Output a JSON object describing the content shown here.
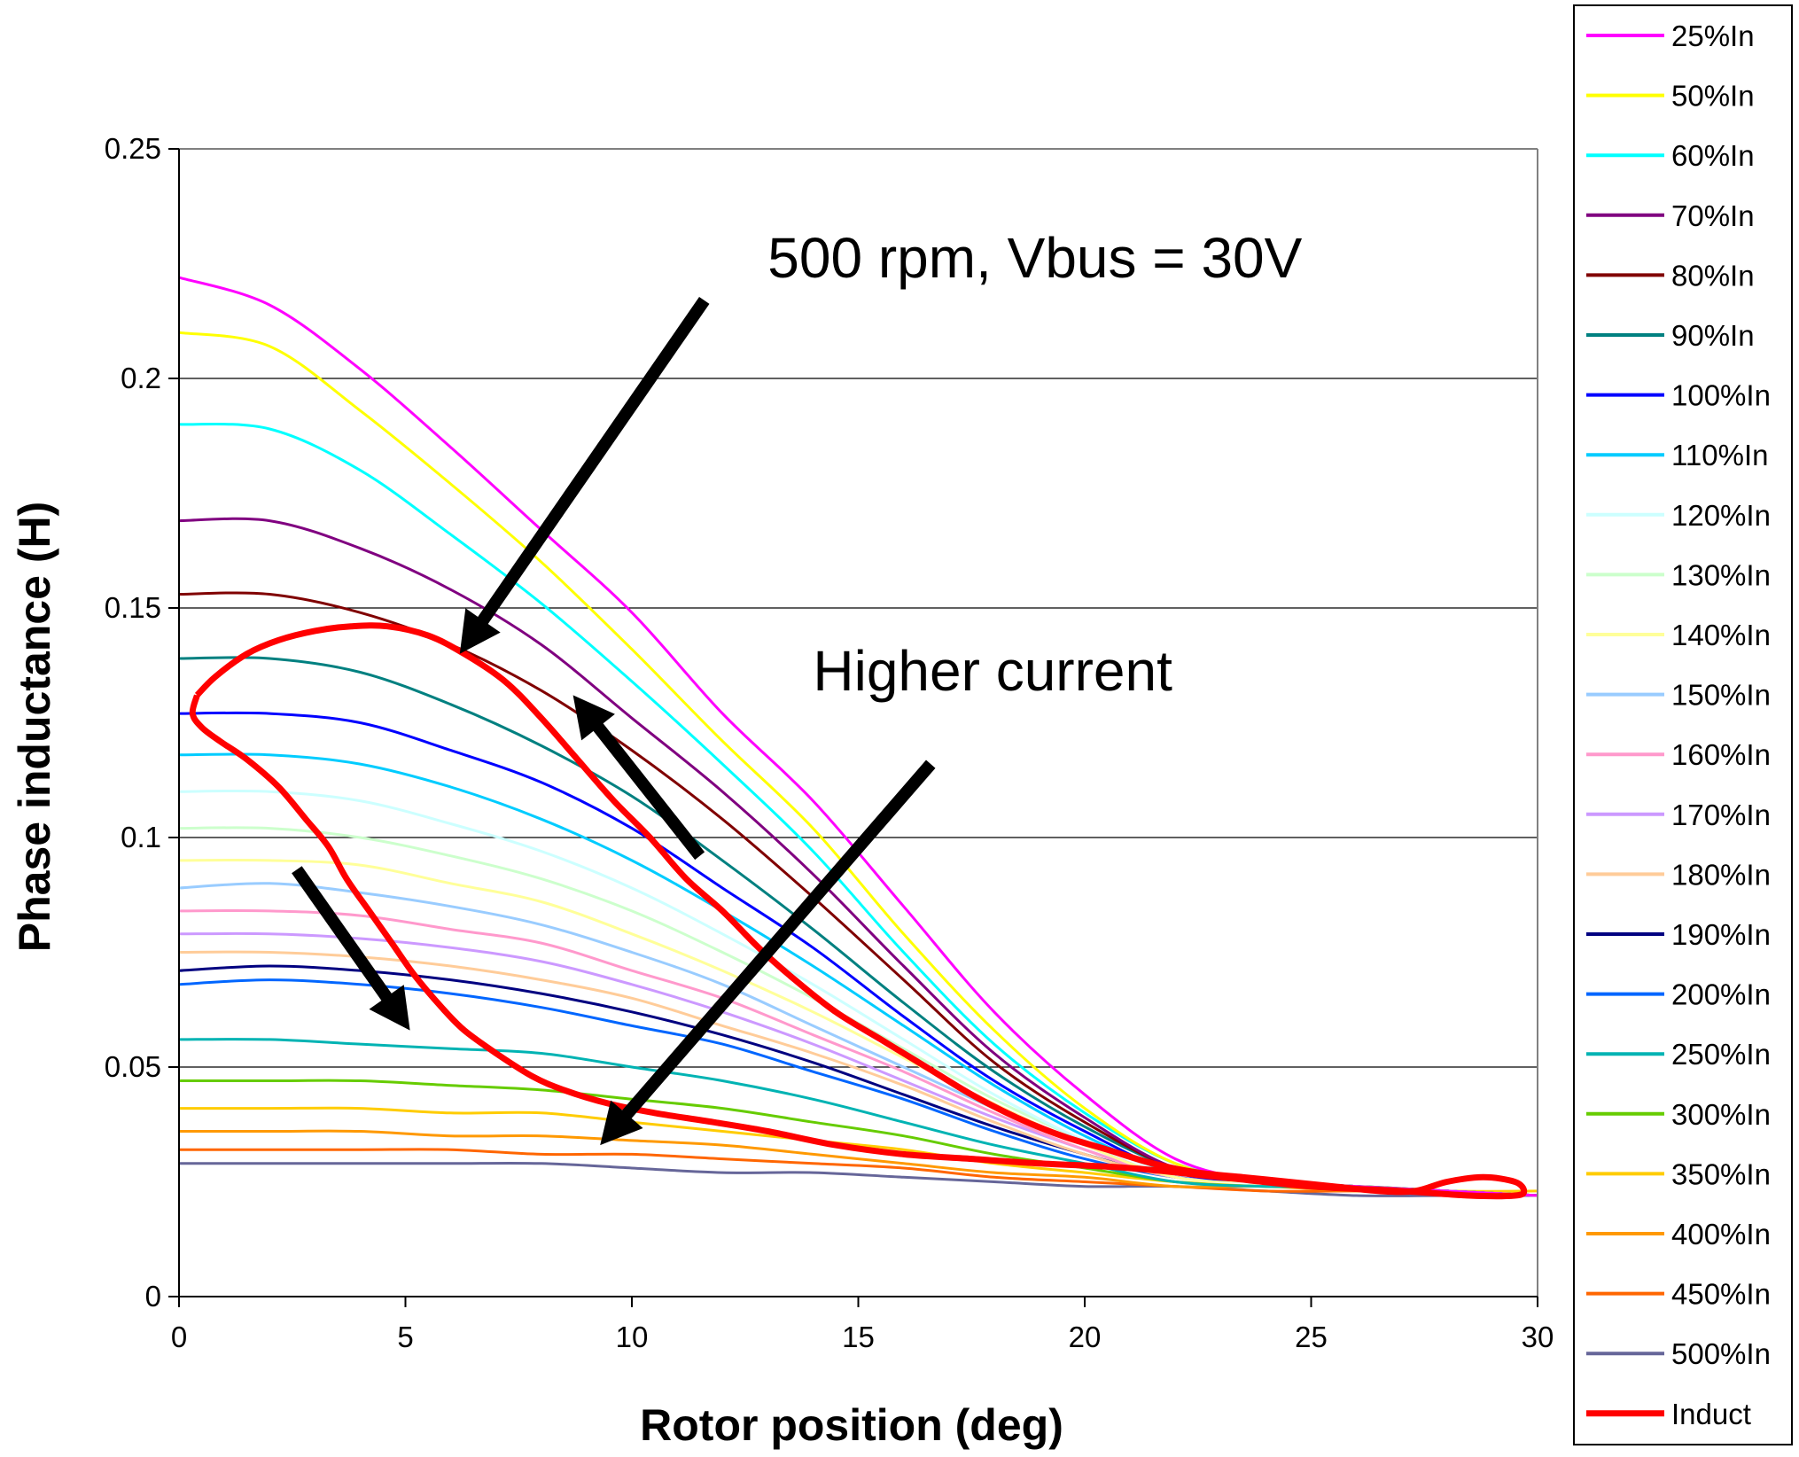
{
  "chart_data": {
    "type": "line",
    "title": "",
    "xlabel": "Rotor position (deg)",
    "ylabel": "Phase inductance (H)",
    "xlim": [
      0,
      30
    ],
    "ylim": [
      0,
      0.25
    ],
    "xticks": [
      0,
      5,
      10,
      15,
      20,
      25,
      30
    ],
    "yticks": [
      {
        "value": 0,
        "label": "0"
      },
      {
        "value": 0.05,
        "label": "0.05"
      },
      {
        "value": 0.1,
        "label": "0.1"
      },
      {
        "value": 0.15,
        "label": "0.15"
      },
      {
        "value": 0.2,
        "label": "0.2"
      },
      {
        "value": 0.25,
        "label": "0.25"
      }
    ],
    "grid": "horizontal",
    "legend_position": "right",
    "x": [
      0,
      2,
      4,
      6,
      8,
      10,
      12,
      14,
      16,
      18,
      20,
      22,
      24,
      26,
      28,
      30
    ],
    "series": [
      {
        "name": "25%In",
        "color": "#ff00ff",
        "values": [
          0.222,
          0.216,
          0.202,
          0.185,
          0.167,
          0.149,
          0.127,
          0.108,
          0.085,
          0.062,
          0.044,
          0.03,
          0.025,
          0.024,
          0.023,
          0.022
        ]
      },
      {
        "name": "50%In",
        "color": "#ffff00",
        "values": [
          0.21,
          0.207,
          0.193,
          0.177,
          0.16,
          0.141,
          0.121,
          0.102,
          0.079,
          0.058,
          0.041,
          0.029,
          0.025,
          0.024,
          0.023,
          0.022
        ]
      },
      {
        "name": "60%In",
        "color": "#00ffff",
        "values": [
          0.19,
          0.189,
          0.18,
          0.166,
          0.151,
          0.134,
          0.116,
          0.097,
          0.075,
          0.055,
          0.04,
          0.029,
          0.025,
          0.024,
          0.023,
          0.022
        ]
      },
      {
        "name": "70%In",
        "color": "#800080",
        "values": [
          0.169,
          0.169,
          0.163,
          0.154,
          0.142,
          0.126,
          0.11,
          0.092,
          0.072,
          0.053,
          0.039,
          0.028,
          0.025,
          0.024,
          0.023,
          0.022
        ]
      },
      {
        "name": "80%In",
        "color": "#800000",
        "values": [
          0.153,
          0.153,
          0.149,
          0.142,
          0.132,
          0.119,
          0.104,
          0.087,
          0.069,
          0.051,
          0.038,
          0.028,
          0.025,
          0.024,
          0.023,
          0.022
        ]
      },
      {
        "name": "90%In",
        "color": "#008080",
        "values": [
          0.139,
          0.139,
          0.136,
          0.129,
          0.12,
          0.109,
          0.095,
          0.08,
          0.064,
          0.049,
          0.037,
          0.028,
          0.025,
          0.024,
          0.023,
          0.022
        ]
      },
      {
        "name": "100%In",
        "color": "#0000ff",
        "values": [
          0.127,
          0.127,
          0.125,
          0.119,
          0.112,
          0.102,
          0.089,
          0.076,
          0.061,
          0.047,
          0.036,
          0.027,
          0.025,
          0.024,
          0.023,
          0.022
        ]
      },
      {
        "name": "110%In",
        "color": "#00ccff",
        "values": [
          0.118,
          0.118,
          0.116,
          0.111,
          0.104,
          0.095,
          0.084,
          0.072,
          0.059,
          0.046,
          0.035,
          0.027,
          0.025,
          0.024,
          0.023,
          0.022
        ]
      },
      {
        "name": "120%In",
        "color": "#ccffff",
        "values": [
          0.11,
          0.11,
          0.108,
          0.103,
          0.097,
          0.089,
          0.079,
          0.068,
          0.056,
          0.044,
          0.034,
          0.027,
          0.025,
          0.024,
          0.023,
          0.022
        ]
      },
      {
        "name": "130%In",
        "color": "#ccffcc",
        "values": [
          0.102,
          0.102,
          0.1,
          0.096,
          0.091,
          0.084,
          0.075,
          0.065,
          0.054,
          0.043,
          0.034,
          0.027,
          0.025,
          0.024,
          0.023,
          0.022
        ]
      },
      {
        "name": "140%In",
        "color": "#ffff99",
        "values": [
          0.095,
          0.095,
          0.094,
          0.09,
          0.086,
          0.079,
          0.071,
          0.062,
          0.052,
          0.042,
          0.033,
          0.026,
          0.025,
          0.024,
          0.023,
          0.022
        ]
      },
      {
        "name": "150%In",
        "color": "#99ccff",
        "values": [
          0.089,
          0.09,
          0.088,
          0.085,
          0.081,
          0.075,
          0.068,
          0.059,
          0.05,
          0.041,
          0.033,
          0.026,
          0.025,
          0.024,
          0.023,
          0.022
        ]
      },
      {
        "name": "160%In",
        "color": "#ff99cc",
        "values": [
          0.084,
          0.084,
          0.083,
          0.08,
          0.077,
          0.071,
          0.065,
          0.057,
          0.049,
          0.04,
          0.032,
          0.026,
          0.025,
          0.024,
          0.023,
          0.022
        ]
      },
      {
        "name": "170%In",
        "color": "#cc99ff",
        "values": [
          0.079,
          0.079,
          0.078,
          0.076,
          0.073,
          0.068,
          0.062,
          0.055,
          0.047,
          0.039,
          0.032,
          0.026,
          0.025,
          0.024,
          0.023,
          0.022
        ]
      },
      {
        "name": "180%In",
        "color": "#ffcc99",
        "values": [
          0.075,
          0.075,
          0.074,
          0.072,
          0.069,
          0.065,
          0.059,
          0.053,
          0.046,
          0.038,
          0.031,
          0.026,
          0.025,
          0.024,
          0.023,
          0.022
        ]
      },
      {
        "name": "190%In",
        "color": "#000080",
        "values": [
          0.071,
          0.072,
          0.071,
          0.069,
          0.066,
          0.062,
          0.057,
          0.051,
          0.044,
          0.037,
          0.031,
          0.026,
          0.025,
          0.024,
          0.023,
          0.022
        ]
      },
      {
        "name": "200%In",
        "color": "#0066ff",
        "values": [
          0.068,
          0.069,
          0.068,
          0.066,
          0.063,
          0.059,
          0.055,
          0.049,
          0.043,
          0.036,
          0.03,
          0.026,
          0.025,
          0.024,
          0.023,
          0.022
        ]
      },
      {
        "name": "250%In",
        "color": "#00b3b3",
        "values": [
          0.056,
          0.056,
          0.055,
          0.054,
          0.053,
          0.05,
          0.047,
          0.043,
          0.038,
          0.033,
          0.029,
          0.025,
          0.024,
          0.024,
          0.023,
          0.022
        ]
      },
      {
        "name": "300%In",
        "color": "#66cc00",
        "values": [
          0.047,
          0.047,
          0.047,
          0.046,
          0.045,
          0.043,
          0.041,
          0.038,
          0.035,
          0.031,
          0.028,
          0.025,
          0.024,
          0.024,
          0.023,
          0.022
        ]
      },
      {
        "name": "350%In",
        "color": "#ffcc00",
        "values": [
          0.041,
          0.041,
          0.041,
          0.04,
          0.04,
          0.038,
          0.036,
          0.034,
          0.032,
          0.029,
          0.027,
          0.025,
          0.024,
          0.024,
          0.023,
          0.023
        ]
      },
      {
        "name": "400%In",
        "color": "#ff9900",
        "values": [
          0.036,
          0.036,
          0.036,
          0.035,
          0.035,
          0.034,
          0.033,
          0.031,
          0.029,
          0.027,
          0.026,
          0.024,
          0.024,
          0.023,
          0.023,
          0.022
        ]
      },
      {
        "name": "450%In",
        "color": "#ff6600",
        "values": [
          0.032,
          0.032,
          0.032,
          0.032,
          0.031,
          0.031,
          0.03,
          0.029,
          0.028,
          0.026,
          0.025,
          0.024,
          0.023,
          0.023,
          0.023,
          0.022
        ]
      },
      {
        "name": "500%In",
        "color": "#666699",
        "values": [
          0.029,
          0.029,
          0.029,
          0.029,
          0.029,
          0.028,
          0.027,
          0.027,
          0.026,
          0.025,
          0.024,
          0.024,
          0.023,
          0.022,
          0.022,
          0.022
        ]
      }
    ],
    "loop_series": {
      "name": "Induct",
      "color": "#ff0000",
      "points": [
        [
          0.4,
          0.131
        ],
        [
          0.8,
          0.135
        ],
        [
          1.5,
          0.14
        ],
        [
          2.2,
          0.143
        ],
        [
          3.0,
          0.145
        ],
        [
          3.8,
          0.146
        ],
        [
          4.6,
          0.146
        ],
        [
          5.5,
          0.144
        ],
        [
          6.3,
          0.14
        ],
        [
          7.2,
          0.134
        ],
        [
          8.0,
          0.126
        ],
        [
          8.8,
          0.117
        ],
        [
          9.6,
          0.108
        ],
        [
          10.4,
          0.1
        ],
        [
          11.2,
          0.091
        ],
        [
          12.0,
          0.084
        ],
        [
          12.8,
          0.076
        ],
        [
          13.6,
          0.069
        ],
        [
          14.5,
          0.062
        ],
        [
          15.5,
          0.056
        ],
        [
          16.5,
          0.05
        ],
        [
          17.5,
          0.044
        ],
        [
          18.5,
          0.039
        ],
        [
          19.5,
          0.035
        ],
        [
          20.5,
          0.032
        ],
        [
          21.5,
          0.029
        ],
        [
          22.5,
          0.027
        ],
        [
          23.5,
          0.026
        ],
        [
          24.5,
          0.025
        ],
        [
          25.5,
          0.024
        ],
        [
          26.5,
          0.023
        ],
        [
          27.3,
          0.023
        ],
        [
          28.0,
          0.025
        ],
        [
          28.8,
          0.026
        ],
        [
          29.5,
          0.025
        ],
        [
          29.7,
          0.023
        ],
        [
          29.5,
          0.022
        ],
        [
          28.5,
          0.022
        ],
        [
          27.0,
          0.023
        ],
        [
          25.0,
          0.024
        ],
        [
          23.0,
          0.026
        ],
        [
          21.0,
          0.028
        ],
        [
          19.0,
          0.029
        ],
        [
          17.5,
          0.03
        ],
        [
          16.0,
          0.031
        ],
        [
          14.5,
          0.033
        ],
        [
          13.0,
          0.036
        ],
        [
          11.8,
          0.038
        ],
        [
          10.5,
          0.04
        ],
        [
          9.5,
          0.042
        ],
        [
          8.5,
          0.045
        ],
        [
          7.8,
          0.048
        ],
        [
          7.0,
          0.053
        ],
        [
          6.3,
          0.058
        ],
        [
          5.8,
          0.063
        ],
        [
          5.2,
          0.07
        ],
        [
          4.7,
          0.077
        ],
        [
          4.2,
          0.084
        ],
        [
          3.7,
          0.091
        ],
        [
          3.3,
          0.098
        ],
        [
          2.8,
          0.104
        ],
        [
          2.2,
          0.111
        ],
        [
          1.5,
          0.117
        ],
        [
          0.9,
          0.121
        ],
        [
          0.5,
          0.124
        ],
        [
          0.3,
          0.127
        ],
        [
          0.4,
          0.131
        ]
      ]
    },
    "annotations": [
      {
        "text": "500 rpm, Vbus = 30V",
        "x": 13.0,
        "y": 0.222
      },
      {
        "text": "Higher current",
        "x": 14.0,
        "y": 0.132
      }
    ],
    "arrows": [
      {
        "from": [
          11.6,
          0.217
        ],
        "to": [
          6.2,
          0.14
        ]
      },
      {
        "from": [
          16.6,
          0.116
        ],
        "to": [
          9.3,
          0.033
        ]
      },
      {
        "from": [
          11.5,
          0.096
        ],
        "to": [
          8.7,
          0.131
        ]
      },
      {
        "from": [
          2.6,
          0.093
        ],
        "to": [
          5.1,
          0.058
        ]
      }
    ]
  }
}
